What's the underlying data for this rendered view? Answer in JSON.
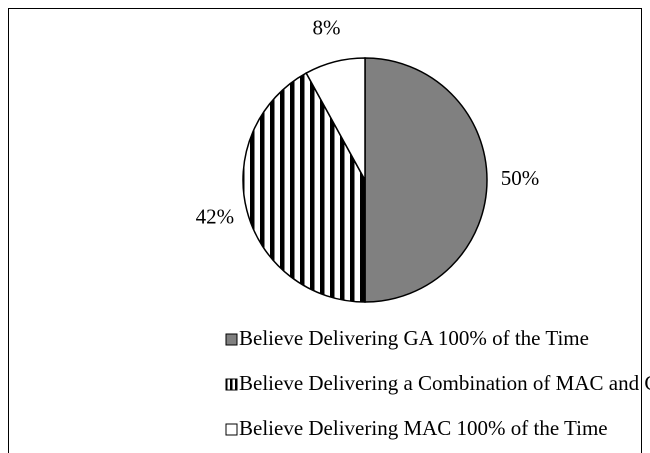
{
  "chart_data": {
    "type": "pie",
    "categories": [
      "Believe Delivering GA 100% of the Time",
      "Believe Delivering a Combination of MAC and GA",
      "Believe Delivering MAC 100% of the Time"
    ],
    "values": [
      50,
      42,
      8
    ],
    "value_labels": [
      "50%",
      "42%",
      "8%"
    ],
    "colors": [
      "#808080",
      "stripes",
      "#ffffff"
    ],
    "legend": "bottom"
  }
}
